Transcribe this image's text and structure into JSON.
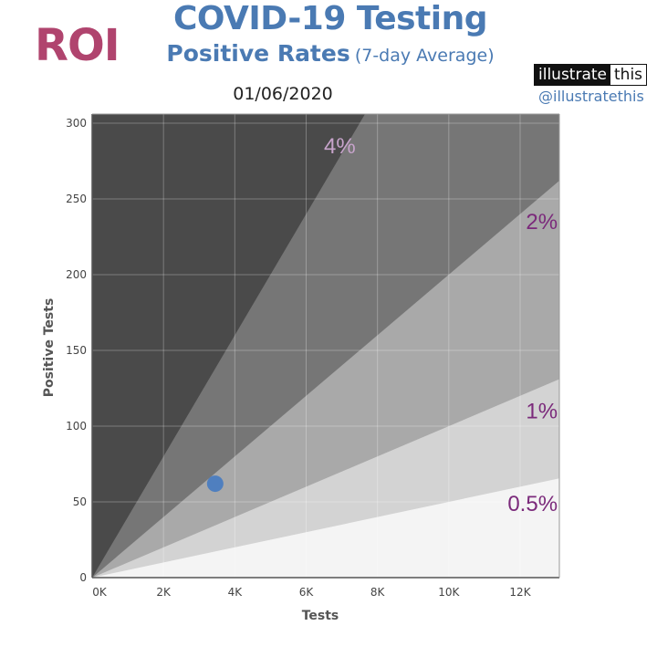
{
  "header": {
    "region": "ROI",
    "title": "COVID-19 Testing",
    "subtitle_main": "Positive Rates",
    "subtitle_note": "(7-day Average)",
    "date": "01/06/2020",
    "brand_part1": "illustrate",
    "brand_part2": "this",
    "handle": "@illustratethis"
  },
  "colors": {
    "title": "#4a7ab3",
    "region": "#b0446e",
    "zone_over_4": "#4a4a4a",
    "zone_2_to_4": "#767676",
    "zone_1_to_2": "#a9a9a9",
    "zone_05_to_1": "#d3d3d3",
    "zone_under_05": "#f4f4f4",
    "point": "#4f7fbf",
    "zone_label": "#7b2a7b",
    "zone_label_top": "#c8a4cc"
  },
  "chart_data": {
    "type": "scatter",
    "xlabel": "Tests",
    "ylabel": "Positive Tests",
    "xlim": [
      0,
      13100
    ],
    "ylim": [
      0,
      306
    ],
    "x_ticks": [
      0,
      2000,
      4000,
      6000,
      8000,
      10000,
      12000
    ],
    "x_tick_labels": [
      "0K",
      "2K",
      "4K",
      "6K",
      "8K",
      "10K",
      "12K"
    ],
    "y_ticks": [
      0,
      50,
      100,
      150,
      200,
      250,
      300
    ],
    "y_tick_labels": [
      "0",
      "50",
      "100",
      "150",
      "200",
      "250",
      "300"
    ],
    "grid": true,
    "rate_bands": [
      {
        "label": "4%",
        "rate": 0.04
      },
      {
        "label": "2%",
        "rate": 0.02
      },
      {
        "label": "1%",
        "rate": 0.01
      },
      {
        "label": "0.5%",
        "rate": 0.005
      }
    ],
    "points": [
      {
        "x": 3450,
        "y": 62
      }
    ]
  }
}
